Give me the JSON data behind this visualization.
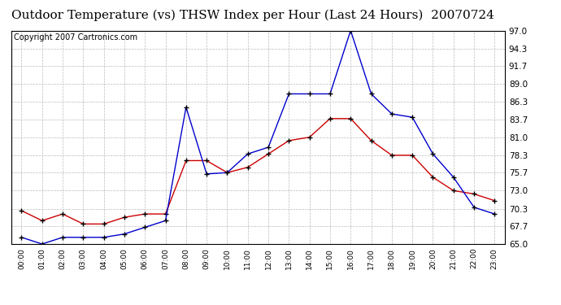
{
  "title": "Outdoor Temperature (vs) THSW Index per Hour (Last 24 Hours)  20070724",
  "copyright": "Copyright 2007 Cartronics.com",
  "hours": [
    "00:00",
    "01:00",
    "02:00",
    "03:00",
    "04:00",
    "05:00",
    "06:00",
    "07:00",
    "08:00",
    "09:00",
    "10:00",
    "11:00",
    "12:00",
    "13:00",
    "14:00",
    "15:00",
    "16:00",
    "17:00",
    "18:00",
    "19:00",
    "20:00",
    "21:00",
    "22:00",
    "23:00"
  ],
  "temp_red": [
    70.0,
    68.5,
    69.5,
    68.0,
    68.0,
    69.0,
    69.5,
    69.5,
    77.5,
    77.5,
    75.7,
    76.5,
    78.5,
    80.5,
    81.0,
    83.8,
    83.8,
    80.5,
    78.3,
    78.3,
    75.0,
    73.0,
    72.5,
    71.5
  ],
  "thsw_blue": [
    66.0,
    65.0,
    66.0,
    66.0,
    66.0,
    66.5,
    67.5,
    68.5,
    85.5,
    75.5,
    75.7,
    78.5,
    79.5,
    87.5,
    87.5,
    87.5,
    97.0,
    87.5,
    84.5,
    84.0,
    78.5,
    75.0,
    70.5,
    69.5
  ],
  "ylim": [
    65.0,
    97.0
  ],
  "yticks": [
    65.0,
    67.7,
    70.3,
    73.0,
    75.7,
    78.3,
    81.0,
    83.7,
    86.3,
    89.0,
    91.7,
    94.3,
    97.0
  ],
  "color_red": "#cc0000",
  "color_blue": "#0000cc",
  "bg_color": "#ffffff",
  "grid_color": "#bbbbbb",
  "title_fontsize": 11,
  "copyright_fontsize": 7
}
